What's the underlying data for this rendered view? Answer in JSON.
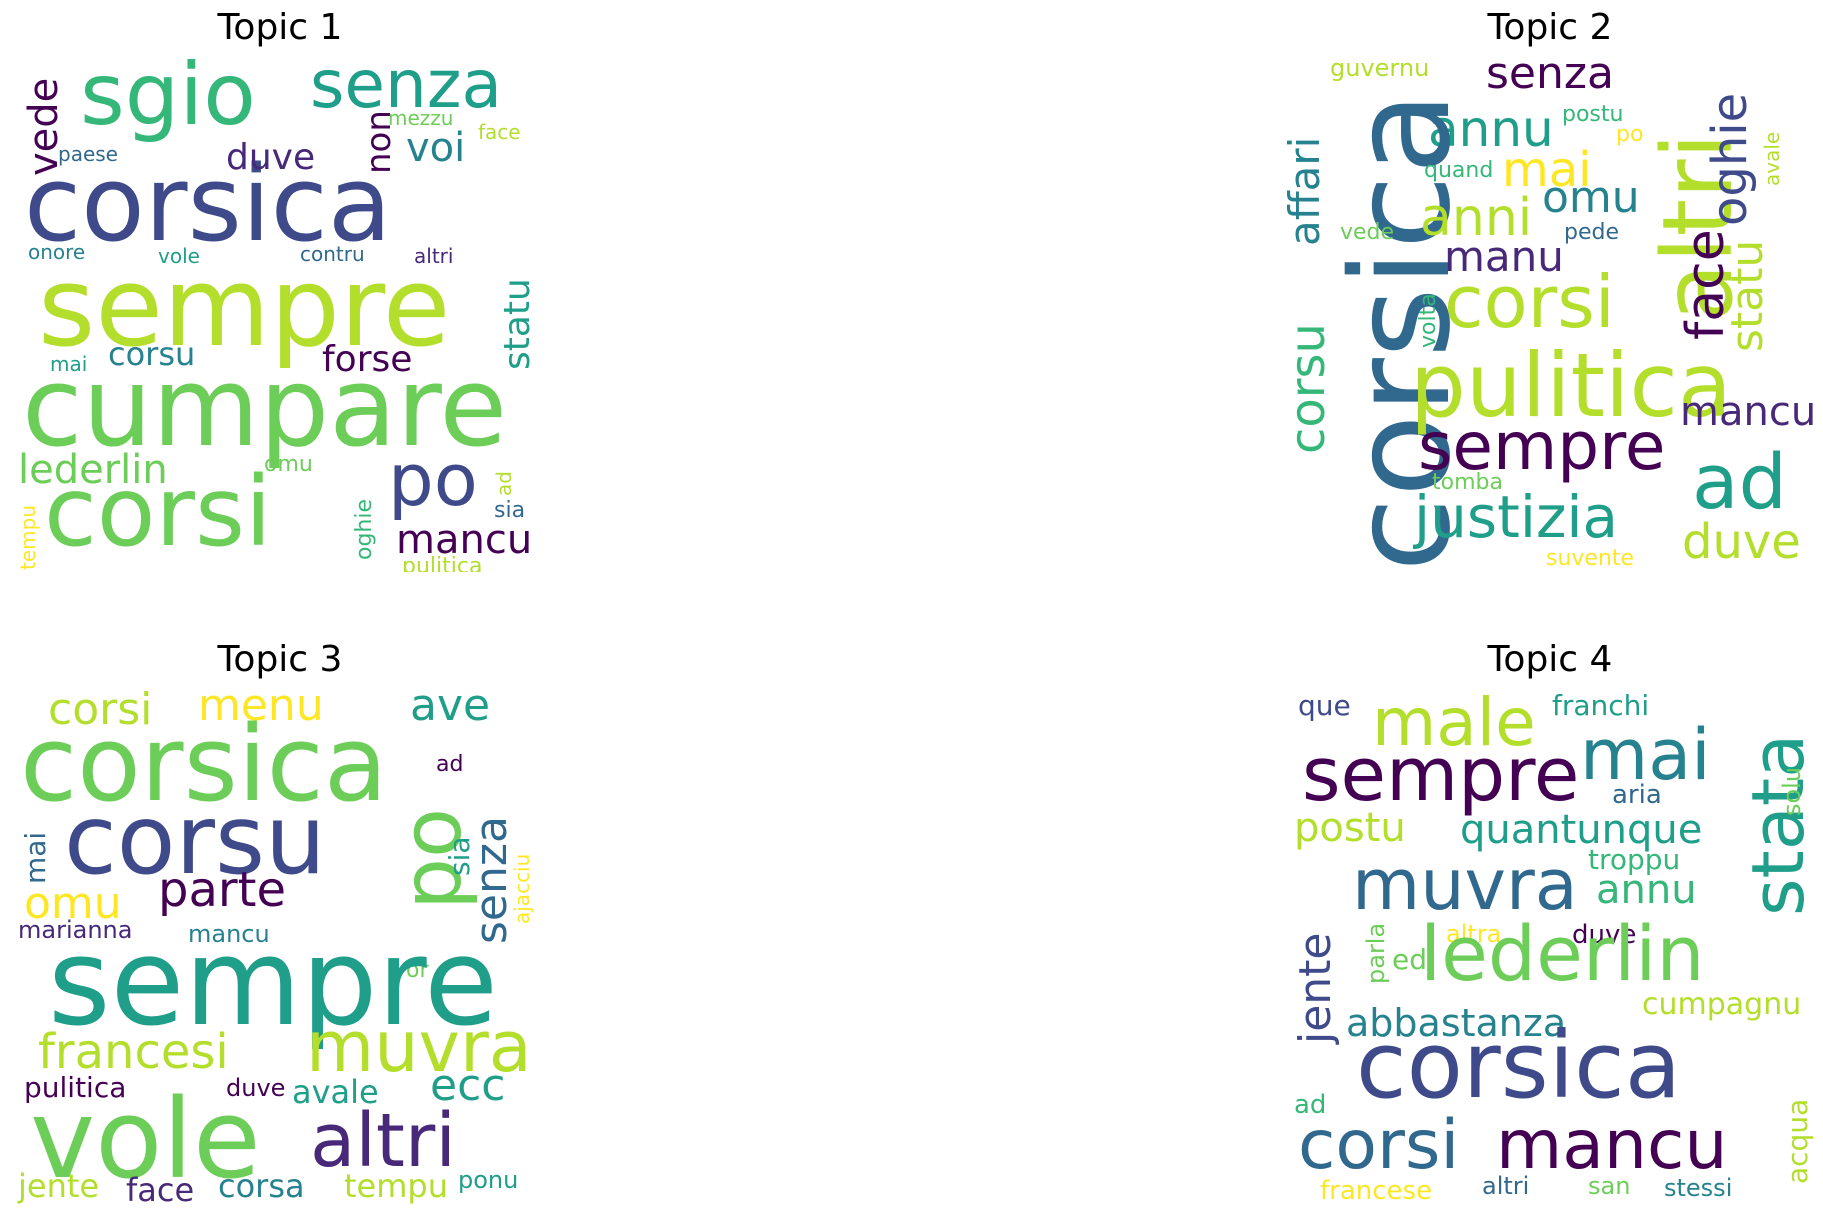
{
  "colors": {
    "d1": "#440154",
    "d2": "#482878",
    "d3": "#3e4a89",
    "d4": "#31688e",
    "d5": "#26828e",
    "d6": "#1f9e89",
    "d7": "#35b779",
    "d8": "#6dcd59",
    "d9": "#b4de2c",
    "d10": "#fde725"
  },
  "topics": [
    {
      "title": "Topic 1",
      "words": [
        {
          "text": "sgio",
          "color": "#35b779"
        },
        {
          "text": "senza",
          "color": "#1f9e89"
        },
        {
          "text": "vede",
          "color": "#440154"
        },
        {
          "text": "corsica",
          "color": "#3e4a89"
        },
        {
          "text": "sempre",
          "color": "#b4de2c"
        },
        {
          "text": "cumpare",
          "color": "#6dcd59"
        },
        {
          "text": "corsi",
          "color": "#6dcd59"
        },
        {
          "text": "duve",
          "color": "#482878"
        },
        {
          "text": "voi",
          "color": "#26828e"
        },
        {
          "text": "non",
          "color": "#440154"
        },
        {
          "text": "mezzu",
          "color": "#6dcd59"
        },
        {
          "text": "face",
          "color": "#b4de2c"
        },
        {
          "text": "paese",
          "color": "#31688e"
        },
        {
          "text": "onore",
          "color": "#26828e"
        },
        {
          "text": "vole",
          "color": "#1f9e89"
        },
        {
          "text": "contru",
          "color": "#31688e"
        },
        {
          "text": "altri",
          "color": "#482878"
        },
        {
          "text": "statu",
          "color": "#1f9e89"
        },
        {
          "text": "corsu",
          "color": "#26828e"
        },
        {
          "text": "forse",
          "color": "#440154"
        },
        {
          "text": "mai",
          "color": "#1f9e89"
        },
        {
          "text": "lederlin",
          "color": "#6dcd59"
        },
        {
          "text": "omu",
          "color": "#6dcd59"
        },
        {
          "text": "po",
          "color": "#3e4a89"
        },
        {
          "text": "ad",
          "color": "#b4de2c"
        },
        {
          "text": "sia",
          "color": "#31688e"
        },
        {
          "text": "mancu",
          "color": "#440154"
        },
        {
          "text": "oghie",
          "color": "#35b779"
        },
        {
          "text": "tempu",
          "color": "#fde725"
        },
        {
          "text": "pulitica",
          "color": "#b4de2c"
        }
      ]
    },
    {
      "title": "Topic 2",
      "words": [
        {
          "text": "guvernu",
          "color": "#b4de2c"
        },
        {
          "text": "senza",
          "color": "#440154"
        },
        {
          "text": "affari",
          "color": "#26828e"
        },
        {
          "text": "annu",
          "color": "#1f9e89"
        },
        {
          "text": "postu",
          "color": "#35b779"
        },
        {
          "text": "po",
          "color": "#fde725"
        },
        {
          "text": "altri",
          "color": "#b4de2c"
        },
        {
          "text": "oghie",
          "color": "#3e4a89"
        },
        {
          "text": "avale",
          "color": "#b4de2c"
        },
        {
          "text": "corsica",
          "color": "#31688e"
        },
        {
          "text": "quand",
          "color": "#35b779"
        },
        {
          "text": "mai",
          "color": "#fde725"
        },
        {
          "text": "omu",
          "color": "#26828e"
        },
        {
          "text": "anni",
          "color": "#b4de2c"
        },
        {
          "text": "vede",
          "color": "#6dcd59"
        },
        {
          "text": "pede",
          "color": "#31688e"
        },
        {
          "text": "face",
          "color": "#440154"
        },
        {
          "text": "statu",
          "color": "#b4de2c"
        },
        {
          "text": "manu",
          "color": "#482878"
        },
        {
          "text": "corsi",
          "color": "#b4de2c"
        },
        {
          "text": "volta",
          "color": "#35b779"
        },
        {
          "text": "corsu",
          "color": "#35b779"
        },
        {
          "text": "pulitica",
          "color": "#b4de2c"
        },
        {
          "text": "mancu",
          "color": "#482878"
        },
        {
          "text": "sempre",
          "color": "#440154"
        },
        {
          "text": "ad",
          "color": "#1f9e89"
        },
        {
          "text": "tomba",
          "color": "#6dcd59"
        },
        {
          "text": "justizia",
          "color": "#1f9e89"
        },
        {
          "text": "duve",
          "color": "#b4de2c"
        },
        {
          "text": "suvente",
          "color": "#fde725"
        }
      ]
    },
    {
      "title": "Topic 3",
      "words": [
        {
          "text": "corsi",
          "color": "#b4de2c"
        },
        {
          "text": "menu",
          "color": "#fde725"
        },
        {
          "text": "ave",
          "color": "#1f9e89"
        },
        {
          "text": "corsica",
          "color": "#6dcd59"
        },
        {
          "text": "ad",
          "color": "#440154"
        },
        {
          "text": "corsu",
          "color": "#3e4a89"
        },
        {
          "text": "po",
          "color": "#6dcd59"
        },
        {
          "text": "mai",
          "color": "#31688e"
        },
        {
          "text": "sia",
          "color": "#1f9e89"
        },
        {
          "text": "senza",
          "color": "#31688e"
        },
        {
          "text": "ajacciu",
          "color": "#fde725"
        },
        {
          "text": "omu",
          "color": "#fde725"
        },
        {
          "text": "parte",
          "color": "#440154"
        },
        {
          "text": "marianna",
          "color": "#482878"
        },
        {
          "text": "mancu",
          "color": "#26828e"
        },
        {
          "text": "or",
          "color": "#6dcd59"
        },
        {
          "text": "sempre",
          "color": "#1f9e89"
        },
        {
          "text": "francesi",
          "color": "#b4de2c"
        },
        {
          "text": "muvra",
          "color": "#b4de2c"
        },
        {
          "text": "pulitica",
          "color": "#440154"
        },
        {
          "text": "duve",
          "color": "#440154"
        },
        {
          "text": "avale",
          "color": "#1f9e89"
        },
        {
          "text": "ecc",
          "color": "#1f9e89"
        },
        {
          "text": "vole",
          "color": "#6dcd59"
        },
        {
          "text": "altri",
          "color": "#482878"
        },
        {
          "text": "jente",
          "color": "#b4de2c"
        },
        {
          "text": "face",
          "color": "#482878"
        },
        {
          "text": "corsa",
          "color": "#26828e"
        },
        {
          "text": "tempu",
          "color": "#b4de2c"
        },
        {
          "text": "ponu",
          "color": "#1f9e89"
        }
      ]
    },
    {
      "title": "Topic 4",
      "words": [
        {
          "text": "que",
          "color": "#3e4a89"
        },
        {
          "text": "male",
          "color": "#b4de2c"
        },
        {
          "text": "franchi",
          "color": "#1f9e89"
        },
        {
          "text": "stata",
          "color": "#1f9e89"
        },
        {
          "text": "sempre",
          "color": "#440154"
        },
        {
          "text": "mai",
          "color": "#26828e"
        },
        {
          "text": "solu",
          "color": "#6dcd59"
        },
        {
          "text": "aria",
          "color": "#31688e"
        },
        {
          "text": "postu",
          "color": "#b4de2c"
        },
        {
          "text": "quantunque",
          "color": "#1f9e89"
        },
        {
          "text": "troppu",
          "color": "#35b779"
        },
        {
          "text": "muvra",
          "color": "#31688e"
        },
        {
          "text": "annu",
          "color": "#35b779"
        },
        {
          "text": "jente",
          "color": "#3e4a89"
        },
        {
          "text": "parla",
          "color": "#6dcd59"
        },
        {
          "text": "altra",
          "color": "#fde725"
        },
        {
          "text": "duve",
          "color": "#440154"
        },
        {
          "text": "ed",
          "color": "#6dcd59"
        },
        {
          "text": "lederlin",
          "color": "#6dcd59"
        },
        {
          "text": "cumpagnu",
          "color": "#b4de2c"
        },
        {
          "text": "abbastanza",
          "color": "#26828e"
        },
        {
          "text": "corsica",
          "color": "#3e4a89"
        },
        {
          "text": "ad",
          "color": "#35b779"
        },
        {
          "text": "acqua",
          "color": "#b4de2c"
        },
        {
          "text": "corsi",
          "color": "#31688e"
        },
        {
          "text": "mancu",
          "color": "#440154"
        },
        {
          "text": "francese",
          "color": "#fde725"
        },
        {
          "text": "altri",
          "color": "#31688e"
        },
        {
          "text": "san",
          "color": "#6dcd59"
        },
        {
          "text": "stessi",
          "color": "#26828e"
        }
      ]
    }
  ]
}
